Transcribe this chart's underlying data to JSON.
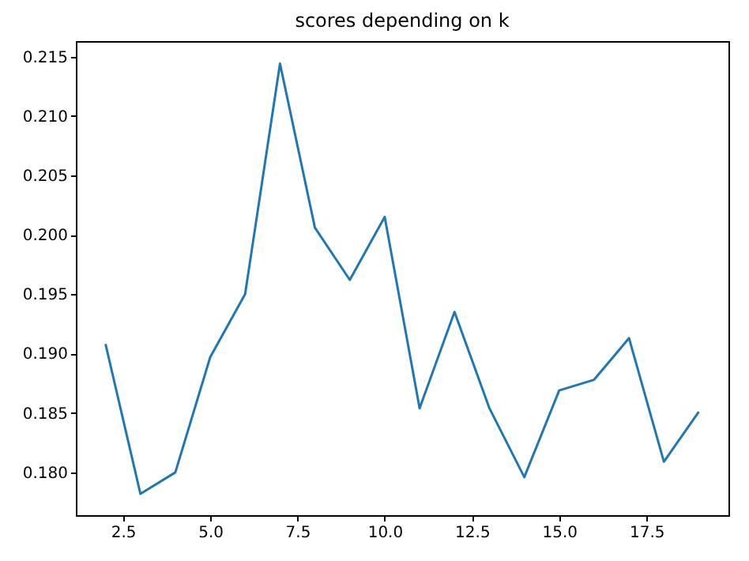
{
  "chart_data": {
    "type": "line",
    "title": "scores depending on k",
    "x": [
      2,
      3,
      4,
      5,
      6,
      7,
      8,
      9,
      10,
      11,
      12,
      13,
      14,
      15,
      16,
      17,
      18,
      19
    ],
    "series": [
      {
        "color": "#1f77b4",
        "values": [
          0.1908,
          0.1782,
          0.18,
          0.1897,
          0.195,
          0.2144,
          0.2006,
          0.1962,
          0.2015,
          0.1854,
          0.1935,
          0.1854,
          0.1796,
          0.1869,
          0.1878,
          0.1913,
          0.1809,
          0.1851
        ]
      }
    ],
    "xlim": [
      1.15,
      19.85
    ],
    "xticks": [
      2.5,
      {
        "value": 5,
        "label": "5.0"
      },
      7.5,
      {
        "value": 10,
        "label": "10.0"
      },
      12.5,
      {
        "value": 15,
        "label": "15.0"
      },
      17.5
    ],
    "ylim": [
      0.1764,
      0.2163
    ],
    "yticks": [
      {
        "value": 0.18,
        "label": "0.180"
      },
      0.185,
      {
        "value": 0.19,
        "label": "0.190"
      },
      0.195,
      {
        "value": 0.2,
        "label": "0.200"
      },
      0.205,
      {
        "value": 0.21,
        "label": "0.210"
      },
      0.215
    ],
    "grid": false,
    "marker": "none",
    "line_style": "solid"
  }
}
